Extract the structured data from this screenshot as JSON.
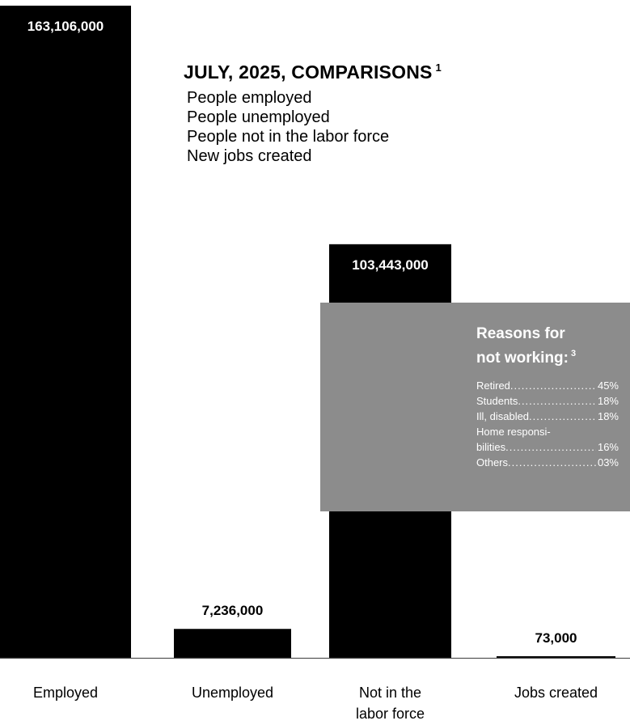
{
  "chart_data": {
    "type": "bar",
    "categories": [
      "Employed",
      "Unemployed",
      "Not in the labor force",
      "Jobs created"
    ],
    "category_lines": [
      [
        "Employed"
      ],
      [
        "Unemployed"
      ],
      [
        "Not in the",
        "labor force"
      ],
      [
        "Jobs created"
      ]
    ],
    "values": [
      163106000,
      7236000,
      103443000,
      73000
    ],
    "value_labels": [
      "163,106,000",
      "7,236,000",
      "103,443,000",
      "73,000"
    ],
    "bar_color": "#000000",
    "ylim": [
      0,
      163106000
    ],
    "grid": false,
    "title": "JULY, 2025,  COMPARISONS",
    "title_footnote": "1",
    "legend_items": [
      "People employed",
      "People unemployed",
      "People not in the labor force",
      "New jobs created"
    ],
    "annotation": {
      "title_line1": "Reasons for",
      "title_line2": "not working:",
      "footnote": "3",
      "box_color": "#8c8c8c",
      "items": [
        {
          "label": "Retired",
          "pct": "45%"
        },
        {
          "label": "Students",
          "pct": "18%"
        },
        {
          "label": "Ill, disabled",
          "pct": "18%"
        },
        {
          "label": "Home responsi-",
          "label2": "bilities",
          "pct": "16%"
        },
        {
          "label": "Others",
          "pct": "03%"
        }
      ]
    }
  }
}
